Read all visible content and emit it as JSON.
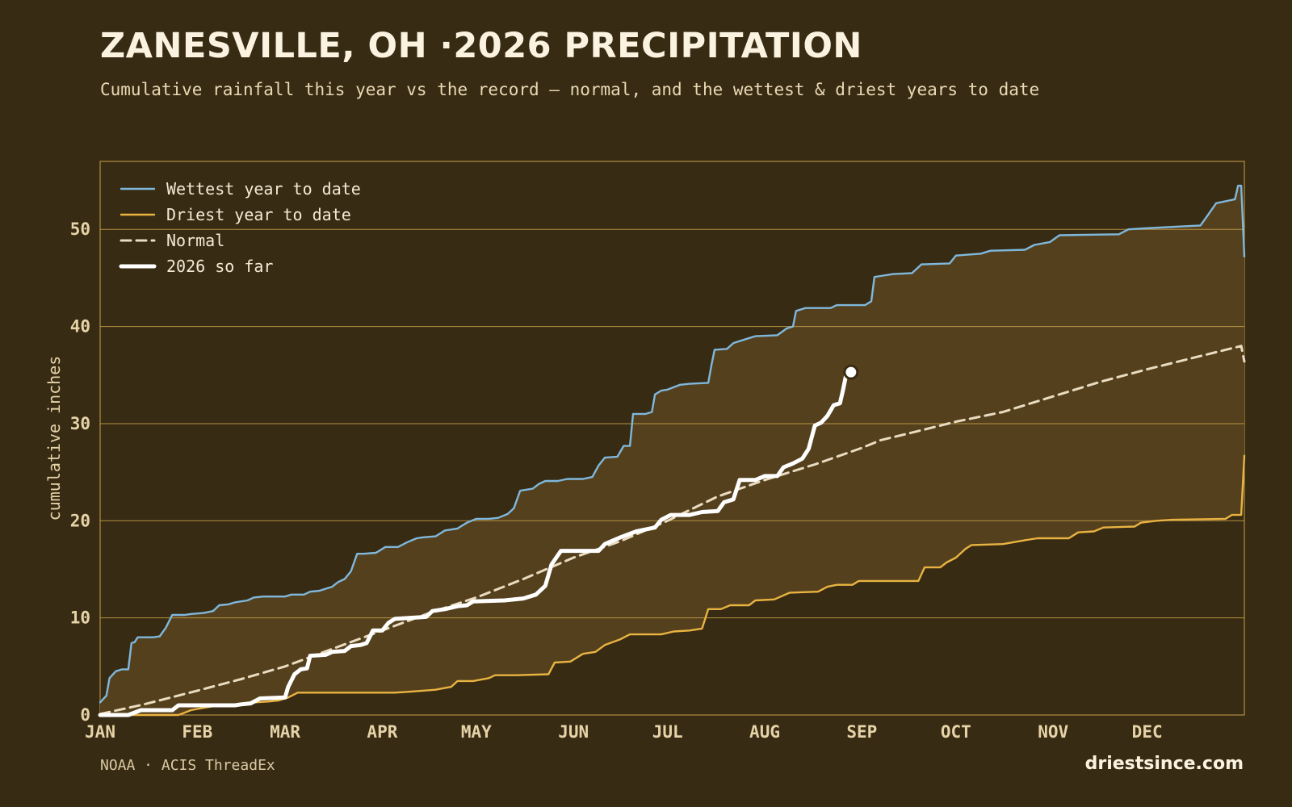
{
  "title": "ZANESVILLE, OH ·2026 PRECIPITATION",
  "subtitle": "Cumulative rainfall this year vs the record — normal, and the wettest & driest years to date",
  "source": "NOAA · ACIS ThreadEx",
  "brand": "driestsince.com",
  "colors": {
    "background": "#382b13",
    "band_fill": "#55401e",
    "grid": "#c9a24a",
    "wettest": "#7fb8dc",
    "driest": "#e8b341",
    "normal": "#e9dcc0",
    "current": "#ffffff"
  },
  "chart_data": {
    "type": "line",
    "ylabel": "cumulative inches",
    "ylim": [
      0,
      57
    ],
    "yticks": [
      0,
      10,
      20,
      30,
      40,
      50
    ],
    "x_unit": "day of year",
    "xlim": [
      1,
      366
    ],
    "month_ticks": [
      {
        "label": "JAN",
        "day": 1
      },
      {
        "label": "FEB",
        "day": 32
      },
      {
        "label": "MAR",
        "day": 60
      },
      {
        "label": "APR",
        "day": 91
      },
      {
        "label": "MAY",
        "day": 121
      },
      {
        "label": "JUN",
        "day": 152
      },
      {
        "label": "JUL",
        "day": 182
      },
      {
        "label": "AUG",
        "day": 213
      },
      {
        "label": "SEP",
        "day": 244
      },
      {
        "label": "OCT",
        "day": 274
      },
      {
        "label": "NOV",
        "day": 305
      },
      {
        "label": "DEC",
        "day": 335
      }
    ],
    "grid": true,
    "legend_position": "top-left",
    "series": [
      {
        "name": "Wettest year to date",
        "points": [
          [
            1,
            1.3
          ],
          [
            3,
            2
          ],
          [
            4,
            3.8
          ],
          [
            6,
            4.5
          ],
          [
            8,
            4.7
          ],
          [
            10,
            4.7
          ],
          [
            11,
            7.4
          ],
          [
            12,
            7.5
          ],
          [
            13,
            8
          ],
          [
            15,
            8
          ],
          [
            18,
            8
          ],
          [
            20,
            8.1
          ],
          [
            22,
            9
          ],
          [
            24,
            10.3
          ],
          [
            28,
            10.3
          ],
          [
            30,
            10.4
          ],
          [
            34,
            10.5
          ],
          [
            37,
            10.7
          ],
          [
            39,
            11.3
          ],
          [
            42,
            11.4
          ],
          [
            44,
            11.6
          ],
          [
            48,
            11.8
          ],
          [
            50,
            12.1
          ],
          [
            53,
            12.2
          ],
          [
            60,
            12.2
          ],
          [
            62,
            12.4
          ],
          [
            66,
            12.4
          ],
          [
            68,
            12.7
          ],
          [
            71,
            12.8
          ],
          [
            73,
            13
          ],
          [
            75,
            13.2
          ],
          [
            77,
            13.7
          ],
          [
            79,
            14
          ],
          [
            81,
            14.8
          ],
          [
            83,
            16.6
          ],
          [
            85,
            16.6
          ],
          [
            89,
            16.7
          ],
          [
            92,
            17.3
          ],
          [
            96,
            17.3
          ],
          [
            99,
            17.8
          ],
          [
            102,
            18.2
          ],
          [
            104,
            18.3
          ],
          [
            108,
            18.4
          ],
          [
            111,
            19
          ],
          [
            115,
            19.2
          ],
          [
            118,
            19.8
          ],
          [
            121,
            20.2
          ],
          [
            125,
            20.2
          ],
          [
            128,
            20.3
          ],
          [
            131,
            20.7
          ],
          [
            133,
            21.3
          ],
          [
            135,
            23.1
          ],
          [
            139,
            23.3
          ],
          [
            141,
            23.8
          ],
          [
            143,
            24.1
          ],
          [
            147,
            24.1
          ],
          [
            150,
            24.3
          ],
          [
            155,
            24.3
          ],
          [
            158,
            24.5
          ],
          [
            160,
            25.7
          ],
          [
            162,
            26.5
          ],
          [
            166,
            26.6
          ],
          [
            168,
            27.7
          ],
          [
            170,
            27.7
          ],
          [
            171,
            31
          ],
          [
            175,
            31
          ],
          [
            177,
            31.2
          ],
          [
            178,
            33
          ],
          [
            180,
            33.4
          ],
          [
            182,
            33.5
          ],
          [
            186,
            34
          ],
          [
            189,
            34.1
          ],
          [
            195,
            34.2
          ],
          [
            196,
            36
          ],
          [
            197,
            37.6
          ],
          [
            201,
            37.7
          ],
          [
            203,
            38.3
          ],
          [
            207,
            38.7
          ],
          [
            210,
            39
          ],
          [
            217,
            39.1
          ],
          [
            220,
            39.8
          ],
          [
            222,
            40
          ],
          [
            223,
            41.6
          ],
          [
            226,
            41.9
          ],
          [
            234,
            41.9
          ],
          [
            236,
            42.2
          ],
          [
            245,
            42.2
          ],
          [
            247,
            42.6
          ],
          [
            248,
            45.1
          ],
          [
            250,
            45.2
          ],
          [
            254,
            45.4
          ],
          [
            260,
            45.5
          ],
          [
            263,
            46.4
          ],
          [
            272,
            46.5
          ],
          [
            274,
            47.3
          ],
          [
            282,
            47.5
          ],
          [
            285,
            47.8
          ],
          [
            296,
            47.9
          ],
          [
            299,
            48.4
          ],
          [
            304,
            48.7
          ],
          [
            307,
            49.4
          ],
          [
            326,
            49.5
          ],
          [
            329,
            50
          ],
          [
            334,
            50.1
          ],
          [
            346,
            50.3
          ],
          [
            352,
            50.4
          ],
          [
            354,
            51.3
          ],
          [
            357,
            52.7
          ],
          [
            363,
            53.1
          ],
          [
            364,
            54.5
          ],
          [
            365,
            54.5
          ],
          [
            366,
            47.2
          ]
        ]
      },
      {
        "name": "Driest year to date",
        "points": [
          [
            1,
            0
          ],
          [
            26,
            0
          ],
          [
            30,
            0.5
          ],
          [
            35,
            0.8
          ],
          [
            39,
            1
          ],
          [
            46,
            1.1
          ],
          [
            50,
            1.3
          ],
          [
            55,
            1.4
          ],
          [
            58,
            1.5
          ],
          [
            61,
            1.8
          ],
          [
            64,
            2.3
          ],
          [
            70,
            2.3
          ],
          [
            79,
            2.3
          ],
          [
            95,
            2.3
          ],
          [
            100,
            2.4
          ],
          [
            108,
            2.6
          ],
          [
            113,
            2.9
          ],
          [
            115,
            3.5
          ],
          [
            120,
            3.5
          ],
          [
            125,
            3.8
          ],
          [
            127,
            4.1
          ],
          [
            134,
            4.1
          ],
          [
            144,
            4.2
          ],
          [
            146,
            5.4
          ],
          [
            151,
            5.5
          ],
          [
            155,
            6.3
          ],
          [
            159,
            6.5
          ],
          [
            162,
            7.2
          ],
          [
            167,
            7.8
          ],
          [
            170,
            8.3
          ],
          [
            180,
            8.3
          ],
          [
            184,
            8.6
          ],
          [
            189,
            8.7
          ],
          [
            193,
            8.9
          ],
          [
            195,
            10.9
          ],
          [
            199,
            10.9
          ],
          [
            202,
            11.3
          ],
          [
            208,
            11.3
          ],
          [
            210,
            11.8
          ],
          [
            216,
            11.9
          ],
          [
            221,
            12.6
          ],
          [
            230,
            12.7
          ],
          [
            233,
            13.2
          ],
          [
            236,
            13.4
          ],
          [
            241,
            13.4
          ],
          [
            243,
            13.8
          ],
          [
            262,
            13.8
          ],
          [
            264,
            15.2
          ],
          [
            269,
            15.2
          ],
          [
            271,
            15.7
          ],
          [
            274,
            16.2
          ],
          [
            277,
            17.1
          ],
          [
            279,
            17.5
          ],
          [
            289,
            17.6
          ],
          [
            296,
            18
          ],
          [
            300,
            18.2
          ],
          [
            310,
            18.2
          ],
          [
            313,
            18.8
          ],
          [
            318,
            18.9
          ],
          [
            321,
            19.3
          ],
          [
            331,
            19.4
          ],
          [
            333,
            19.8
          ],
          [
            338,
            20
          ],
          [
            343,
            20.1
          ],
          [
            360,
            20.2
          ],
          [
            362,
            20.6
          ],
          [
            365,
            20.6
          ],
          [
            366,
            26.7
          ]
        ]
      },
      {
        "name": "Normal",
        "points": [
          [
            1,
            0.1
          ],
          [
            15,
            1.1
          ],
          [
            32,
            2.5
          ],
          [
            46,
            3.7
          ],
          [
            60,
            5
          ],
          [
            75,
            6.8
          ],
          [
            91,
            8.7
          ],
          [
            106,
            10.5
          ],
          [
            121,
            12.1
          ],
          [
            136,
            14
          ],
          [
            152,
            16.2
          ],
          [
            167,
            17.9
          ],
          [
            182,
            20
          ],
          [
            198,
            22.5
          ],
          [
            213,
            24.2
          ],
          [
            229,
            25.8
          ],
          [
            244,
            27.5
          ],
          [
            250,
            28.3
          ],
          [
            259,
            29
          ],
          [
            274,
            30.2
          ],
          [
            289,
            31.2
          ],
          [
            305,
            32.8
          ],
          [
            320,
            34.3
          ],
          [
            335,
            35.6
          ],
          [
            350,
            36.8
          ],
          [
            365,
            38
          ],
          [
            366,
            36.4
          ]
        ]
      },
      {
        "name": "2026 so far",
        "points": [
          [
            1,
            0
          ],
          [
            10,
            0
          ],
          [
            14,
            0.5
          ],
          [
            24,
            0.5
          ],
          [
            26,
            1
          ],
          [
            44,
            1
          ],
          [
            46,
            1.1
          ],
          [
            49,
            1.2
          ],
          [
            52,
            1.7
          ],
          [
            60,
            1.8
          ],
          [
            61,
            2.9
          ],
          [
            63,
            4.2
          ],
          [
            65,
            4.7
          ],
          [
            67,
            4.8
          ],
          [
            68,
            6.1
          ],
          [
            73,
            6.2
          ],
          [
            75,
            6.5
          ],
          [
            79,
            6.6
          ],
          [
            81,
            7.1
          ],
          [
            84,
            7.2
          ],
          [
            86,
            7.4
          ],
          [
            88,
            8.7
          ],
          [
            91,
            8.7
          ],
          [
            93,
            9.5
          ],
          [
            95,
            9.9
          ],
          [
            100,
            10
          ],
          [
            105,
            10.1
          ],
          [
            107,
            10.7
          ],
          [
            111,
            10.9
          ],
          [
            115,
            11.2
          ],
          [
            118,
            11.3
          ],
          [
            120,
            11.7
          ],
          [
            130,
            11.8
          ],
          [
            136,
            12
          ],
          [
            140,
            12.4
          ],
          [
            143,
            13.3
          ],
          [
            145,
            15.5
          ],
          [
            148,
            16.9
          ],
          [
            160,
            16.9
          ],
          [
            162,
            17.6
          ],
          [
            167,
            18.3
          ],
          [
            172,
            18.9
          ],
          [
            175,
            19.1
          ],
          [
            178,
            19.3
          ],
          [
            180,
            20.1
          ],
          [
            183,
            20.6
          ],
          [
            189,
            20.6
          ],
          [
            193,
            20.9
          ],
          [
            198,
            21
          ],
          [
            200,
            21.9
          ],
          [
            203,
            22.2
          ],
          [
            205,
            24.2
          ],
          [
            210,
            24.2
          ],
          [
            213,
            24.6
          ],
          [
            217,
            24.6
          ],
          [
            219,
            25.5
          ],
          [
            222,
            25.9
          ],
          [
            225,
            26.4
          ],
          [
            227,
            27.4
          ],
          [
            229,
            29.8
          ],
          [
            231,
            30.1
          ],
          [
            233,
            30.8
          ],
          [
            235,
            31.9
          ],
          [
            237,
            32.1
          ],
          [
            238,
            33.5
          ],
          [
            239,
            35.1
          ],
          [
            240,
            35.3
          ]
        ]
      }
    ]
  }
}
